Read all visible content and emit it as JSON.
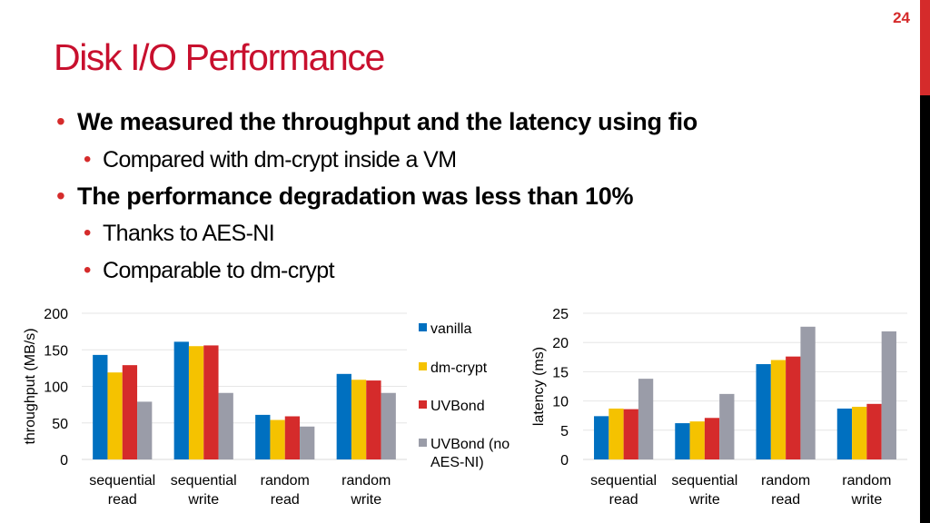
{
  "page_number": "24",
  "title": "Disk I/O Performance",
  "bullets": [
    {
      "text": "We measured the throughput and the latency using fio",
      "sub": [
        "Compared with dm-crypt inside a VM"
      ]
    },
    {
      "text": "The performance degradation was less than 10%",
      "sub": [
        "Thanks to AES-NI",
        "Comparable to dm-crypt"
      ]
    }
  ],
  "colors": {
    "accent": "#c8102e",
    "vanilla": "#0070c0",
    "dm-crypt": "#f5c200",
    "UVBond": "#d52b2b",
    "UVBond (no AES-NI)": "#9a9ca8"
  },
  "chart_data": [
    {
      "type": "bar",
      "ylabel": "throughput (MB/s)",
      "ylim": [
        0,
        200
      ],
      "yticks": [
        "0",
        "50",
        "100",
        "150",
        "200"
      ],
      "categories": [
        "sequential read",
        "sequential write",
        "random read",
        "random write"
      ],
      "legend_placement": "right",
      "grid": true,
      "series": [
        {
          "name": "vanilla",
          "values": [
            143,
            161,
            61,
            117
          ]
        },
        {
          "name": "dm-crypt",
          "values": [
            119,
            155,
            54,
            109
          ]
        },
        {
          "name": "UVBond",
          "values": [
            129,
            156,
            59,
            108
          ]
        },
        {
          "name": "UVBond (no AES-NI)",
          "values": [
            79,
            91,
            45,
            91
          ]
        }
      ]
    },
    {
      "type": "bar",
      "ylabel": "latency (ms)",
      "ylim": [
        0,
        25
      ],
      "yticks": [
        "0",
        "5",
        "10",
        "15",
        "20",
        "25"
      ],
      "categories": [
        "sequential read",
        "sequential write",
        "random read",
        "random write"
      ],
      "grid": true,
      "series": [
        {
          "values": [
            7.4,
            6.2,
            16.3,
            8.7
          ]
        },
        {
          "values": [
            8.7,
            6.5,
            17.0,
            9.0
          ]
        },
        {
          "values": [
            8.6,
            7.1,
            17.6,
            9.5
          ]
        },
        {
          "values": [
            13.8,
            11.2,
            22.7,
            21.9
          ]
        }
      ]
    }
  ]
}
